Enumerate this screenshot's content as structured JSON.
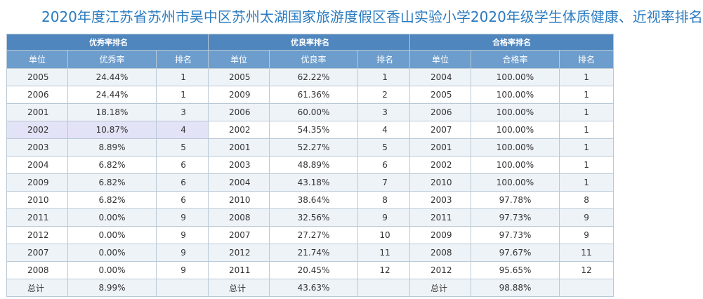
{
  "title": "2020年度江苏省苏州市吴中区苏州太湖国家旅游度假区香山实验小学2020年级学生体质健康、近视率排名",
  "tables": [
    {
      "caption": "优秀率排名",
      "headers": [
        "单位",
        "优秀率",
        "排名"
      ],
      "rows": [
        [
          "2005",
          "24.44%",
          "1"
        ],
        [
          "2006",
          "24.44%",
          "1"
        ],
        [
          "2001",
          "18.18%",
          "3"
        ],
        [
          "2002",
          "10.87%",
          "4"
        ],
        [
          "2003",
          "8.89%",
          "5"
        ],
        [
          "2004",
          "6.82%",
          "6"
        ],
        [
          "2009",
          "6.82%",
          "6"
        ],
        [
          "2010",
          "6.82%",
          "6"
        ],
        [
          "2011",
          "0.00%",
          "9"
        ],
        [
          "2012",
          "0.00%",
          "9"
        ],
        [
          "2007",
          "0.00%",
          "9"
        ],
        [
          "2008",
          "0.00%",
          "9"
        ]
      ],
      "total": [
        "总计",
        "8.99%",
        ""
      ]
    },
    {
      "caption": "优良率排名",
      "headers": [
        "单位",
        "优良率",
        "排名"
      ],
      "rows": [
        [
          "2005",
          "62.22%",
          "1"
        ],
        [
          "2009",
          "61.36%",
          "2"
        ],
        [
          "2006",
          "60.00%",
          "3"
        ],
        [
          "2002",
          "54.35%",
          "4"
        ],
        [
          "2001",
          "52.27%",
          "5"
        ],
        [
          "2003",
          "48.89%",
          "6"
        ],
        [
          "2004",
          "43.18%",
          "7"
        ],
        [
          "2010",
          "38.64%",
          "8"
        ],
        [
          "2008",
          "32.56%",
          "9"
        ],
        [
          "2007",
          "27.27%",
          "10"
        ],
        [
          "2012",
          "21.74%",
          "11"
        ],
        [
          "2011",
          "20.45%",
          "12"
        ]
      ],
      "total": [
        "总计",
        "43.63%",
        ""
      ]
    },
    {
      "caption": "合格率排名",
      "headers": [
        "单位",
        "合格率",
        "排名"
      ],
      "rows": [
        [
          "2004",
          "100.00%",
          "1"
        ],
        [
          "2005",
          "100.00%",
          "1"
        ],
        [
          "2006",
          "100.00%",
          "1"
        ],
        [
          "2007",
          "100.00%",
          "1"
        ],
        [
          "2001",
          "100.00%",
          "1"
        ],
        [
          "2002",
          "100.00%",
          "1"
        ],
        [
          "2010",
          "100.00%",
          "1"
        ],
        [
          "2003",
          "97.78%",
          "8"
        ],
        [
          "2011",
          "97.73%",
          "9"
        ],
        [
          "2009",
          "97.73%",
          "9"
        ],
        [
          "2008",
          "97.67%",
          "11"
        ],
        [
          "2012",
          "95.65%",
          "12"
        ]
      ],
      "total": [
        "总计",
        "98.88%",
        ""
      ]
    }
  ],
  "colors": {
    "title": "#2a7bc0",
    "caption_bg": "#4e86bd",
    "header_bg": "#6d9dcc",
    "row_alt_bg": "#eef3f8",
    "highlight_row_bg": "#e3e3f7"
  }
}
